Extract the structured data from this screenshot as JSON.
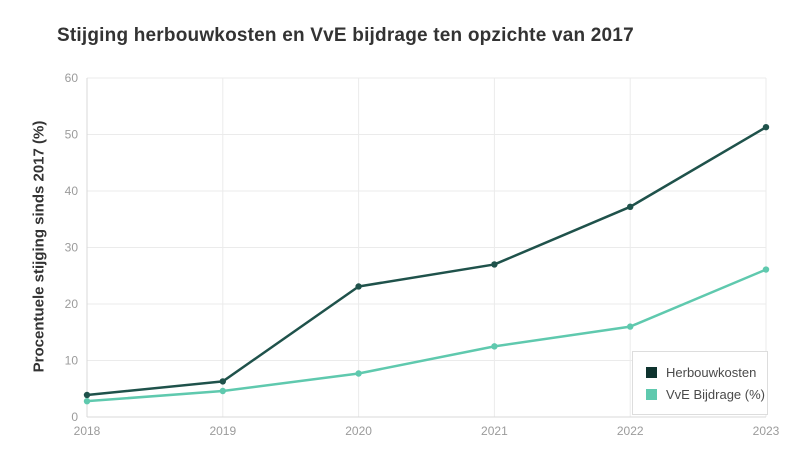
{
  "title": "Stijging herbouwkosten en VvE bijdrage ten opzichte van 2017",
  "colors": {
    "background": "#ffffff",
    "title_text": "#333333",
    "axis_text": "#9b9b9b",
    "grid": "#ebebeb",
    "axis_line": "#d9d9d9",
    "legend_border": "#dddddd",
    "legend_text": "#4a4a4a"
  },
  "chart_data": {
    "type": "line",
    "title": "Stijging herbouwkosten en VvE bijdrage ten opzichte van 2017",
    "xlabel": "",
    "ylabel": "Procentuele stijging sinds 2017 (%)",
    "categories": [
      "2018",
      "2019",
      "2020",
      "2021",
      "2022",
      "2023"
    ],
    "series": [
      {
        "name": "Herbouwkosten",
        "values": [
          3.9,
          6.3,
          23.1,
          27.0,
          37.2,
          51.3
        ],
        "color": "#1f524b",
        "swatch": "#0e332e"
      },
      {
        "name": "VvE Bijdrage (%)",
        "values": [
          2.8,
          4.6,
          7.7,
          12.5,
          16.0,
          26.1
        ],
        "color": "#5fc9ae",
        "swatch": "#5fc9ae"
      }
    ],
    "ylim": [
      0,
      60
    ],
    "yticks": [
      0,
      10,
      20,
      30,
      40,
      50,
      60
    ],
    "grid": true,
    "legend_position": "bottom-right"
  }
}
